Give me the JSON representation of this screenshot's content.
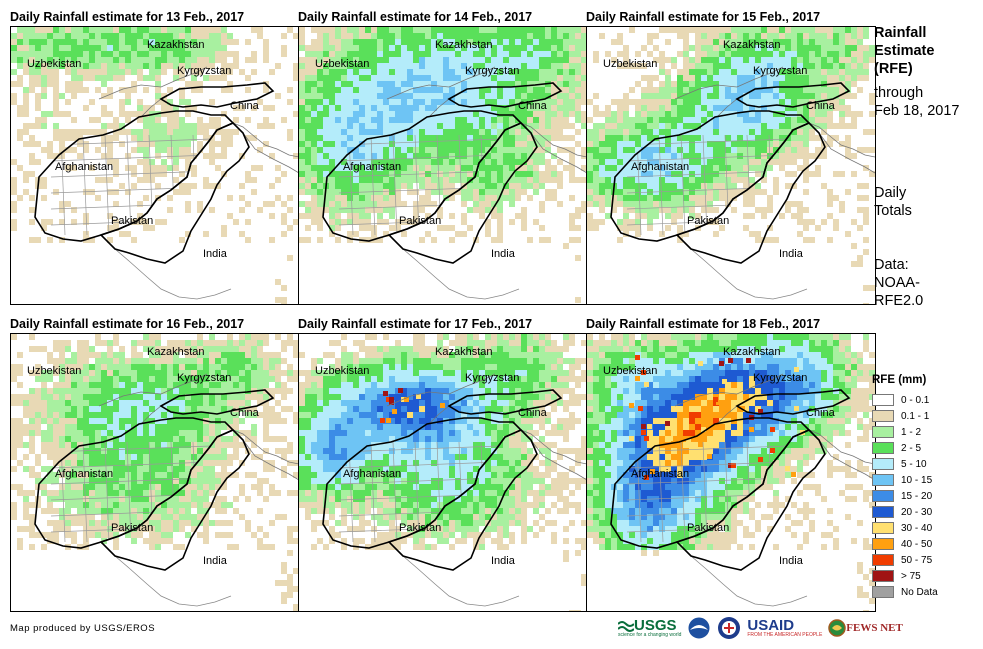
{
  "panels": [
    {
      "title": "Daily Rainfall estimate for 13 Feb., 2017",
      "intensity": 0
    },
    {
      "title": "Daily Rainfall estimate for 14 Feb., 2017",
      "intensity": 1
    },
    {
      "title": "Daily Rainfall estimate for 15 Feb., 2017",
      "intensity": 2
    },
    {
      "title": "Daily Rainfall estimate for 16 Feb., 2017",
      "intensity": 3
    },
    {
      "title": "Daily Rainfall estimate for 17 Feb., 2017",
      "intensity": 4
    },
    {
      "title": "Daily Rainfall estimate for 18 Feb., 2017",
      "intensity": 5
    }
  ],
  "map_labels": {
    "kazakhstan": "Kazakhstan",
    "uzbekistan": "Uzbekistan",
    "kyrgyzstan": "Kyrgyzstan",
    "china": "China",
    "afghanistan": "Afghanistan",
    "pakistan": "Pakistan",
    "india": "India"
  },
  "side": {
    "title_lines": [
      "Rainfall",
      "Estimate",
      "(RFE)"
    ],
    "through_lines": [
      "through",
      "Feb 18, 2017"
    ],
    "totals_lines": [
      "Daily",
      "Totals"
    ],
    "data_lines": [
      "Data:",
      "NOAA-",
      "RFE2.0"
    ]
  },
  "legend": {
    "title": "RFE (mm)",
    "items": [
      {
        "label": "0 - 0.1",
        "color": "#ffffff"
      },
      {
        "label": "0.1 - 1",
        "color": "#e8d9b5"
      },
      {
        "label": "1 - 2",
        "color": "#a8f0a0"
      },
      {
        "label": "2 - 5",
        "color": "#5ae05a"
      },
      {
        "label": "5 - 10",
        "color": "#b4ecfa"
      },
      {
        "label": "10 - 15",
        "color": "#6ec4f4"
      },
      {
        "label": "15 - 20",
        "color": "#3c8ce6"
      },
      {
        "label": "20 - 30",
        "color": "#1e5ad2"
      },
      {
        "label": "30 - 40",
        "color": "#ffe070"
      },
      {
        "label": "40 - 50",
        "color": "#ffa010"
      },
      {
        "label": "50 - 75",
        "color": "#f03c00"
      },
      {
        "label": "> 75",
        "color": "#a01414"
      },
      {
        "label": "No Data",
        "color": "#a0a0a0"
      }
    ]
  },
  "credit": "Map produced by USGS/EROS",
  "logos": {
    "usgs": "USGS",
    "usgs_tagline": "science for a changing world",
    "usaid": "USAID",
    "usaid_tagline": "FROM THE AMERICAN PEOPLE",
    "fewsnet": "FEWS NET"
  }
}
